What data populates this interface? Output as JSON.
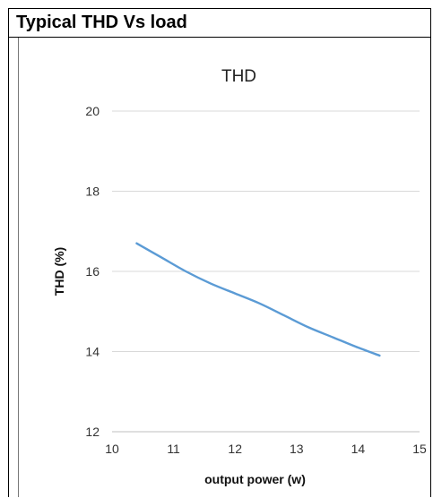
{
  "header": {
    "title": "Typical THD Vs load"
  },
  "chart_data": {
    "type": "line",
    "title": "THD",
    "xlabel": "output power (w)",
    "ylabel": "THD (%)",
    "xlim": [
      10,
      15
    ],
    "ylim": [
      12,
      20
    ],
    "x_ticks": [
      10,
      11,
      12,
      13,
      14,
      15
    ],
    "y_ticks": [
      12,
      14,
      16,
      18,
      20
    ],
    "grid": {
      "horizontal": true,
      "vertical": false
    },
    "series": [
      {
        "color": "#5b9bd5",
        "x": [
          10.4,
          10.8,
          11.2,
          11.6,
          12.0,
          12.4,
          12.8,
          13.2,
          13.6,
          14.0,
          14.35
        ],
        "y": [
          16.7,
          16.35,
          16.0,
          15.7,
          15.45,
          15.2,
          14.9,
          14.6,
          14.35,
          14.1,
          13.9
        ]
      }
    ],
    "gridline_color": "#d9d9d9"
  }
}
